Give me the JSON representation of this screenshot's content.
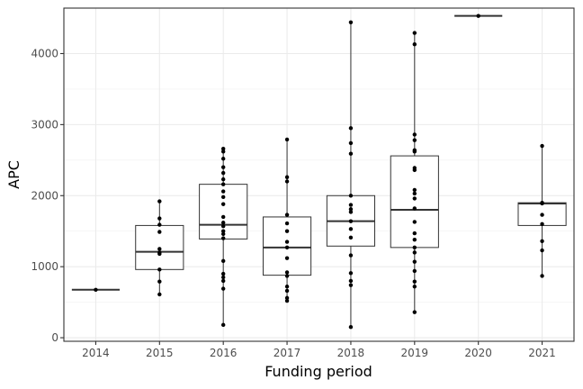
{
  "chart_data": {
    "type": "boxplot",
    "xlabel": "Funding period",
    "ylabel": "APC",
    "categories": [
      "2014",
      "2015",
      "2016",
      "2017",
      "2018",
      "2019",
      "2020",
      "2021"
    ],
    "ylim": [
      -50,
      4640
    ],
    "yticks": [
      0,
      1000,
      2000,
      3000,
      4000
    ],
    "ytick_labels": [
      "0",
      "1000",
      "2000",
      "3000",
      "4000"
    ],
    "grid": true,
    "theme": "black-and-white",
    "boxes": [
      {
        "category": "2014",
        "min": 675,
        "q1": 675,
        "median": 675,
        "q3": 675,
        "max": 675
      },
      {
        "category": "2015",
        "min": 610,
        "q1": 960,
        "median": 1210,
        "q3": 1580,
        "max": 1920
      },
      {
        "category": "2016",
        "min": 180,
        "q1": 1390,
        "median": 1590,
        "q3": 2160,
        "max": 2660
      },
      {
        "category": "2017",
        "min": 520,
        "q1": 880,
        "median": 1270,
        "q3": 1700,
        "max": 2790
      },
      {
        "category": "2018",
        "min": 150,
        "q1": 1290,
        "median": 1640,
        "q3": 2000,
        "max": 4440
      },
      {
        "category": "2019",
        "min": 360,
        "q1": 1270,
        "median": 1800,
        "q3": 2560,
        "max": 4290
      },
      {
        "category": "2020",
        "min": 4530,
        "q1": 4530,
        "median": 4530,
        "q3": 4530,
        "max": 4530
      },
      {
        "category": "2021",
        "min": 870,
        "q1": 1580,
        "median": 1890,
        "q3": 1900,
        "max": 2700
      }
    ],
    "points": [
      {
        "category": "2014",
        "values": [
          675
        ]
      },
      {
        "category": "2015",
        "values": [
          1920,
          1680,
          1590,
          1490,
          1250,
          1200,
          1180,
          960,
          790,
          610
        ]
      },
      {
        "category": "2016",
        "values": [
          2660,
          2620,
          2520,
          2400,
          2320,
          2230,
          2160,
          2060,
          1980,
          1880,
          1700,
          1620,
          1570,
          1500,
          1460,
          1400,
          1080,
          900,
          850,
          800,
          690,
          180
        ]
      },
      {
        "category": "2017",
        "values": [
          2790,
          2260,
          2200,
          1730,
          1610,
          1500,
          1350,
          1270,
          1120,
          920,
          870,
          720,
          660,
          560,
          520
        ]
      },
      {
        "category": "2018",
        "values": [
          4440,
          2950,
          2740,
          2590,
          2000,
          1870,
          1810,
          1770,
          1640,
          1530,
          1410,
          1160,
          910,
          800,
          740,
          150
        ]
      },
      {
        "category": "2019",
        "values": [
          4290,
          4130,
          2860,
          2780,
          2640,
          2620,
          2390,
          2360,
          2080,
          2030,
          1960,
          1820,
          1630,
          1470,
          1380,
          1270,
          1200,
          1070,
          940,
          790,
          720,
          360
        ]
      },
      {
        "category": "2020",
        "values": [
          4530
        ]
      },
      {
        "category": "2021",
        "values": [
          2700,
          1900,
          1890,
          1730,
          1600,
          1360,
          1230,
          870
        ]
      }
    ]
  }
}
